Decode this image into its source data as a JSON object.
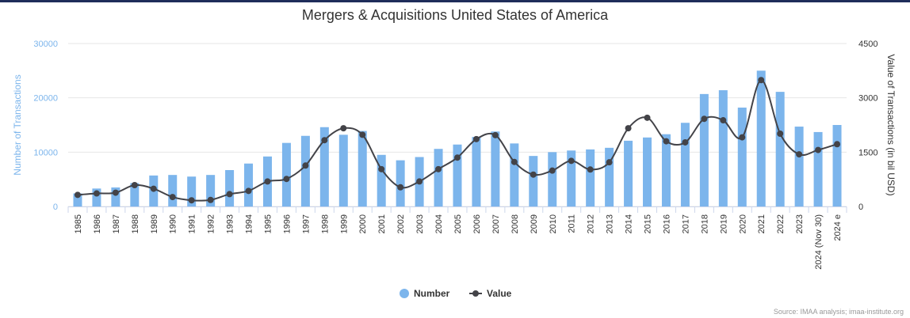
{
  "chart_data": {
    "type": "bar",
    "title": "Mergers & Acquisitions United States of America",
    "ylabel_left": "Number of Transactions",
    "ylabel_right": "Value of Transactions (in bil USD)",
    "ylim_left": [
      0,
      30000
    ],
    "ylim_right": [
      0,
      4500
    ],
    "yticks_left": [
      "0",
      "10000",
      "20000",
      "30000"
    ],
    "yticks_right": [
      "0",
      "1500",
      "3000",
      "4500"
    ],
    "grid": true,
    "legend_position": "bottom-center",
    "categories": [
      "1985",
      "1986",
      "1987",
      "1988",
      "1989",
      "1990",
      "1991",
      "1992",
      "1993",
      "1994",
      "1995",
      "1996",
      "1997",
      "1998",
      "1999",
      "2000",
      "2001",
      "2002",
      "2003",
      "2004",
      "2005",
      "2006",
      "2007",
      "2008",
      "2009",
      "2010",
      "2011",
      "2012",
      "2013",
      "2014",
      "2015",
      "2016",
      "2017",
      "2018",
      "2019",
      "2020",
      "2021",
      "2022",
      "2023",
      "2024 (Nov 30)",
      "2024 e"
    ],
    "series": [
      {
        "name": "Number",
        "type": "column",
        "axis": "left",
        "color": "#7cb5ec",
        "values": [
          2400,
          3300,
          3500,
          4300,
          5700,
          5800,
          5500,
          5800,
          6700,
          7900,
          9200,
          11700,
          13000,
          14600,
          13200,
          13900,
          9500,
          8500,
          9100,
          10600,
          11400,
          12800,
          13800,
          11600,
          9300,
          10000,
          10300,
          10500,
          10800,
          12100,
          12700,
          13300,
          15400,
          20700,
          21400,
          18200,
          25000,
          21100,
          14700,
          13700,
          15000
        ]
      },
      {
        "name": "Value",
        "type": "spline",
        "axis": "right",
        "color": "#434348",
        "values": [
          320,
          360,
          380,
          590,
          490,
          260,
          170,
          180,
          340,
          430,
          690,
          760,
          1130,
          1830,
          2160,
          1980,
          1030,
          530,
          690,
          1030,
          1350,
          1860,
          1970,
          1230,
          880,
          990,
          1260,
          1020,
          1220,
          2160,
          2450,
          1800,
          1770,
          2420,
          2380,
          1910,
          3490,
          2010,
          1440,
          1560,
          1720
        ]
      }
    ],
    "legend": [
      {
        "label": "Number",
        "symbol": "circle",
        "color": "#7cb5ec"
      },
      {
        "label": "Value",
        "symbol": "line-marker",
        "color": "#434348"
      }
    ],
    "credits": "Source: IMAA analysis; imaa-institute.org"
  }
}
